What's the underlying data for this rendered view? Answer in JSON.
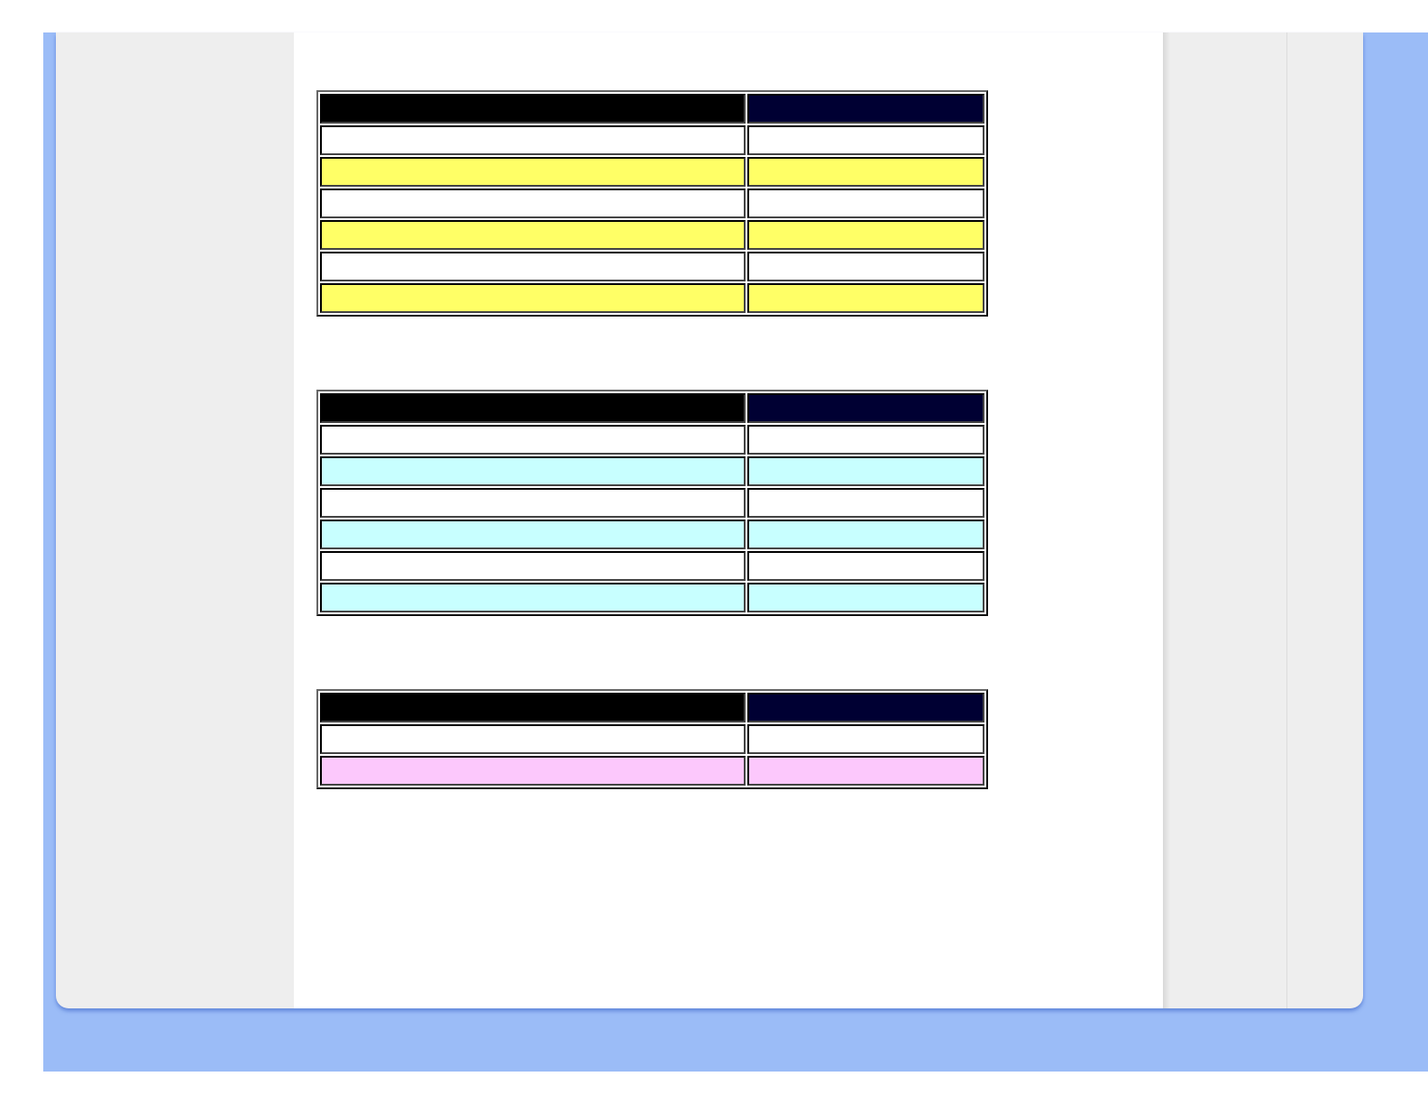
{
  "colors": {
    "desktop_background": "#9bbcf7",
    "panel_background": "#eeeeee",
    "content_background": "#ffffff",
    "header_left": "#000000",
    "header_right": "#000033"
  },
  "tables": [
    {
      "rows": [
        "#ffffff",
        "#ffff66",
        "#ffffff",
        "#ffff66",
        "#ffffff",
        "#ffff66"
      ]
    },
    {
      "rows": [
        "#ffffff",
        "#c8ffff",
        "#ffffff",
        "#c8ffff",
        "#ffffff",
        "#c8ffff"
      ]
    },
    {
      "rows": [
        "#ffffff",
        "#fcc8fc"
      ]
    }
  ]
}
